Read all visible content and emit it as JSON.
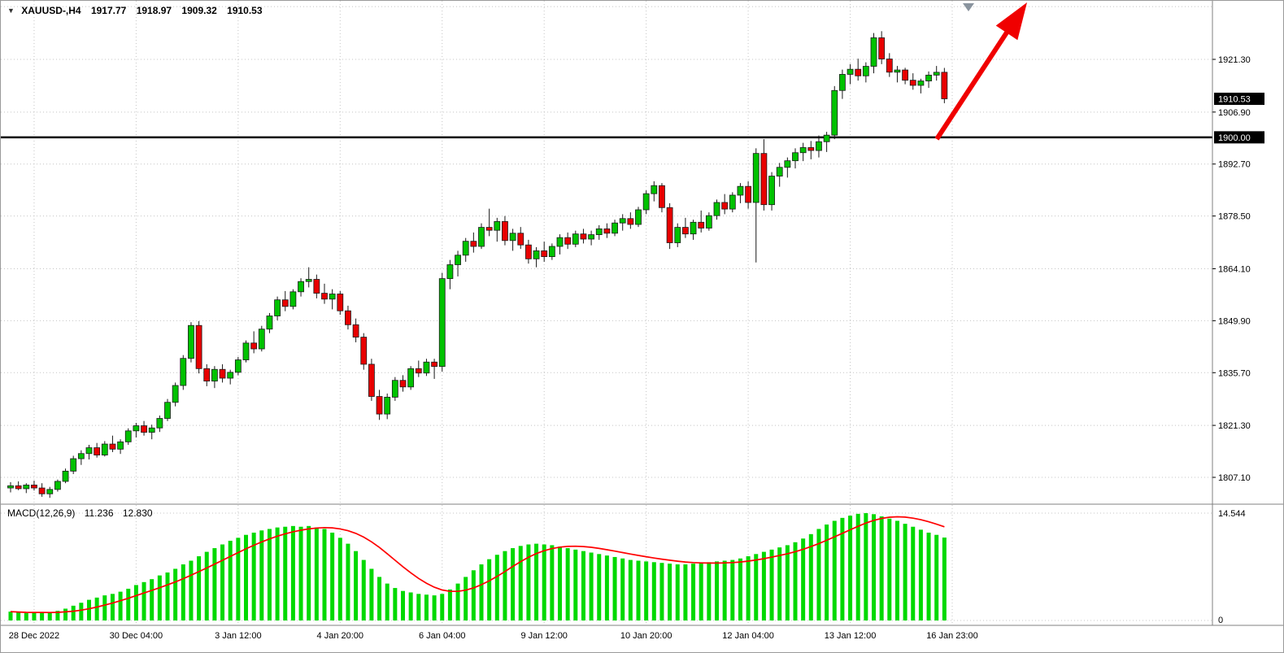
{
  "window": {
    "symbol_period": "XAUUSD-,H4",
    "ohlc": {
      "open": "1917.77",
      "high": "1918.97",
      "low": "1909.32",
      "close": "1910.53"
    }
  },
  "colors": {
    "background": "#ffffff",
    "grid": "#c4c4c4",
    "candle_up": "#00c200",
    "candle_down": "#e80000",
    "candle_outline": "#1a1a1a",
    "macd_bar": "#00d900",
    "macd_signal": "#ff0000",
    "level_line": "#000000",
    "badge_bg": "#000000",
    "badge_text": "#ffffff",
    "arrow": "#f00000",
    "separator": "#808080",
    "shift_marker": "#8a949e",
    "text": "#000000"
  },
  "price_axis": {
    "labels": [
      1921.3,
      1906.9,
      1892.7,
      1878.5,
      1864.1,
      1849.9,
      1835.7,
      1821.3,
      1807.1
    ],
    "extra_gridlines": [
      1935.7
    ],
    "badges": [
      {
        "text": "1910.53",
        "value": 1910.53,
        "name": "current-price-badge"
      },
      {
        "text": "1900.00",
        "value": 1900.0,
        "name": "level-price-badge"
      }
    ]
  },
  "time_axis": {
    "labels": [
      "28 Dec 2022",
      "30 Dec 04:00",
      "3 Jan 12:00",
      "4 Jan 20:00",
      "6 Jan 04:00",
      "9 Jan 12:00",
      "10 Jan 20:00",
      "12 Jan 04:00",
      "13 Jan 12:00",
      "16 Jan 23:00"
    ],
    "bar_indices": [
      3,
      16,
      29,
      42,
      55,
      68,
      81,
      94,
      107,
      120
    ]
  },
  "level_line": {
    "value": 1900.0
  },
  "annotations": {
    "trend_arrow": {
      "type": "arrow",
      "direction": "up-right",
      "color": "#f00000"
    }
  },
  "chart_data": {
    "type": "candlestick",
    "symbol": "XAUUSD-",
    "timeframe": "H4",
    "ohlc_format": [
      "open",
      "high",
      "low",
      "close"
    ],
    "candles": [
      [
        1804.2,
        1805.8,
        1803.0,
        1804.8
      ],
      [
        1804.8,
        1806.0,
        1803.6,
        1804.0
      ],
      [
        1804.0,
        1805.5,
        1802.8,
        1805.0
      ],
      [
        1805.0,
        1806.2,
        1803.5,
        1804.2
      ],
      [
        1804.2,
        1805.5,
        1801.8,
        1802.6
      ],
      [
        1802.6,
        1804.5,
        1801.5,
        1803.8
      ],
      [
        1803.8,
        1806.5,
        1803.2,
        1806.0
      ],
      [
        1806.0,
        1809.5,
        1805.5,
        1808.8
      ],
      [
        1808.8,
        1813.0,
        1808.0,
        1812.2
      ],
      [
        1812.2,
        1814.5,
        1810.5,
        1813.6
      ],
      [
        1813.6,
        1816.0,
        1812.0,
        1815.2
      ],
      [
        1815.2,
        1816.5,
        1812.5,
        1813.2
      ],
      [
        1813.2,
        1817.0,
        1812.8,
        1816.2
      ],
      [
        1816.2,
        1818.5,
        1814.0,
        1814.8
      ],
      [
        1814.8,
        1817.5,
        1813.5,
        1816.8
      ],
      [
        1816.8,
        1820.5,
        1816.0,
        1819.8
      ],
      [
        1819.8,
        1822.0,
        1818.0,
        1821.2
      ],
      [
        1821.2,
        1822.5,
        1818.5,
        1819.4
      ],
      [
        1819.4,
        1821.5,
        1817.5,
        1820.6
      ],
      [
        1820.6,
        1824.0,
        1819.5,
        1823.2
      ],
      [
        1823.2,
        1828.5,
        1822.5,
        1827.6
      ],
      [
        1827.6,
        1833.0,
        1826.5,
        1832.2
      ],
      [
        1832.2,
        1840.5,
        1831.0,
        1839.6
      ],
      [
        1839.6,
        1849.5,
        1838.5,
        1848.6
      ],
      [
        1848.6,
        1849.8,
        1835.5,
        1836.8
      ],
      [
        1836.8,
        1838.0,
        1832.0,
        1833.4
      ],
      [
        1833.4,
        1837.5,
        1831.5,
        1836.6
      ],
      [
        1836.6,
        1838.0,
        1833.0,
        1834.2
      ],
      [
        1834.2,
        1836.5,
        1832.5,
        1835.8
      ],
      [
        1835.8,
        1840.0,
        1835.0,
        1839.2
      ],
      [
        1839.2,
        1844.5,
        1838.5,
        1843.8
      ],
      [
        1843.8,
        1847.0,
        1841.0,
        1842.2
      ],
      [
        1842.2,
        1848.5,
        1841.5,
        1847.6
      ],
      [
        1847.6,
        1852.0,
        1846.5,
        1851.2
      ],
      [
        1851.2,
        1856.5,
        1850.0,
        1855.6
      ],
      [
        1855.6,
        1858.0,
        1852.5,
        1853.8
      ],
      [
        1853.8,
        1858.5,
        1853.0,
        1857.8
      ],
      [
        1857.8,
        1861.5,
        1856.5,
        1860.6
      ],
      [
        1860.6,
        1864.5,
        1859.0,
        1861.2
      ],
      [
        1861.2,
        1862.5,
        1856.0,
        1857.4
      ],
      [
        1857.4,
        1860.0,
        1854.5,
        1855.8
      ],
      [
        1855.8,
        1858.5,
        1853.0,
        1857.2
      ],
      [
        1857.2,
        1858.0,
        1851.5,
        1852.6
      ],
      [
        1852.6,
        1854.0,
        1847.5,
        1848.8
      ],
      [
        1848.8,
        1850.5,
        1844.0,
        1845.4
      ],
      [
        1845.4,
        1846.5,
        1836.5,
        1838.0
      ],
      [
        1838.0,
        1839.5,
        1828.0,
        1829.2
      ],
      [
        1829.2,
        1831.0,
        1822.8,
        1824.4
      ],
      [
        1824.4,
        1830.0,
        1823.0,
        1829.0
      ],
      [
        1829.0,
        1834.5,
        1828.0,
        1833.6
      ],
      [
        1833.6,
        1835.0,
        1830.5,
        1831.8
      ],
      [
        1831.8,
        1837.5,
        1831.0,
        1836.8
      ],
      [
        1836.8,
        1839.0,
        1834.5,
        1835.6
      ],
      [
        1835.6,
        1839.5,
        1834.8,
        1838.6
      ],
      [
        1838.6,
        1839.5,
        1834.0,
        1837.4
      ],
      [
        1837.4,
        1863.0,
        1836.0,
        1861.4
      ],
      [
        1861.4,
        1866.5,
        1858.5,
        1865.2
      ],
      [
        1865.2,
        1869.0,
        1862.0,
        1867.8
      ],
      [
        1867.8,
        1872.5,
        1866.0,
        1871.6
      ],
      [
        1871.6,
        1874.0,
        1868.5,
        1870.2
      ],
      [
        1870.2,
        1876.5,
        1869.5,
        1875.4
      ],
      [
        1875.4,
        1880.5,
        1873.0,
        1874.6
      ],
      [
        1874.6,
        1878.0,
        1871.5,
        1877.0
      ],
      [
        1877.0,
        1878.5,
        1870.5,
        1871.8
      ],
      [
        1871.8,
        1875.0,
        1869.0,
        1873.8
      ],
      [
        1873.8,
        1875.5,
        1869.5,
        1870.6
      ],
      [
        1870.6,
        1872.0,
        1865.5,
        1866.8
      ],
      [
        1866.8,
        1870.0,
        1864.5,
        1869.0
      ],
      [
        1869.0,
        1871.5,
        1866.0,
        1867.4
      ],
      [
        1867.4,
        1871.0,
        1866.5,
        1870.2
      ],
      [
        1870.2,
        1873.5,
        1868.0,
        1872.6
      ],
      [
        1872.6,
        1874.0,
        1869.5,
        1870.8
      ],
      [
        1870.8,
        1874.5,
        1870.0,
        1873.6
      ],
      [
        1873.6,
        1875.0,
        1871.0,
        1872.2
      ],
      [
        1872.2,
        1874.5,
        1870.5,
        1873.4
      ],
      [
        1873.4,
        1876.0,
        1872.0,
        1875.0
      ],
      [
        1875.0,
        1876.5,
        1872.5,
        1873.8
      ],
      [
        1873.8,
        1877.5,
        1873.0,
        1876.6
      ],
      [
        1876.6,
        1879.0,
        1874.5,
        1877.8
      ],
      [
        1877.8,
        1879.5,
        1875.0,
        1876.2
      ],
      [
        1876.2,
        1881.0,
        1875.5,
        1880.2
      ],
      [
        1880.2,
        1885.5,
        1879.0,
        1884.6
      ],
      [
        1884.6,
        1888.0,
        1882.5,
        1886.8
      ],
      [
        1886.8,
        1887.5,
        1879.5,
        1880.8
      ],
      [
        1880.8,
        1882.0,
        1869.5,
        1871.2
      ],
      [
        1871.2,
        1876.5,
        1870.0,
        1875.4
      ],
      [
        1875.4,
        1878.0,
        1872.5,
        1873.6
      ],
      [
        1873.6,
        1877.5,
        1872.0,
        1876.8
      ],
      [
        1876.8,
        1880.0,
        1874.0,
        1875.2
      ],
      [
        1875.2,
        1879.5,
        1874.5,
        1878.6
      ],
      [
        1878.6,
        1883.0,
        1877.5,
        1882.2
      ],
      [
        1882.2,
        1884.5,
        1879.0,
        1880.4
      ],
      [
        1880.4,
        1885.0,
        1879.5,
        1884.2
      ],
      [
        1884.2,
        1887.5,
        1882.0,
        1886.6
      ],
      [
        1886.6,
        1888.0,
        1880.5,
        1882.2
      ],
      [
        1882.2,
        1897.0,
        1865.8,
        1895.6
      ],
      [
        1895.6,
        1899.5,
        1880.0,
        1881.6
      ],
      [
        1881.6,
        1890.5,
        1880.0,
        1889.4
      ],
      [
        1889.4,
        1893.0,
        1886.5,
        1891.8
      ],
      [
        1891.8,
        1894.5,
        1889.0,
        1893.6
      ],
      [
        1893.6,
        1897.0,
        1891.5,
        1895.8
      ],
      [
        1895.8,
        1898.5,
        1893.5,
        1897.2
      ],
      [
        1897.2,
        1899.0,
        1894.0,
        1896.4
      ],
      [
        1896.4,
        1900.5,
        1894.5,
        1898.8
      ],
      [
        1898.8,
        1901.5,
        1896.0,
        1900.6
      ],
      [
        1900.6,
        1914.0,
        1899.5,
        1912.8
      ],
      [
        1912.8,
        1918.5,
        1910.5,
        1917.2
      ],
      [
        1917.2,
        1920.0,
        1914.5,
        1918.6
      ],
      [
        1918.6,
        1921.5,
        1915.5,
        1916.8
      ],
      [
        1916.8,
        1920.5,
        1915.0,
        1919.4
      ],
      [
        1919.4,
        1928.5,
        1917.5,
        1927.2
      ],
      [
        1927.2,
        1929.0,
        1920.0,
        1921.4
      ],
      [
        1921.4,
        1923.0,
        1916.5,
        1917.8
      ],
      [
        1917.8,
        1919.5,
        1915.0,
        1918.4
      ],
      [
        1918.4,
        1919.0,
        1914.5,
        1915.6
      ],
      [
        1915.6,
        1917.5,
        1913.0,
        1914.2
      ],
      [
        1914.2,
        1916.0,
        1912.0,
        1915.4
      ],
      [
        1915.4,
        1918.0,
        1913.5,
        1917.0
      ],
      [
        1917.0,
        1919.5,
        1915.5,
        1917.77
      ],
      [
        1917.77,
        1918.97,
        1909.32,
        1910.53
      ]
    ],
    "macd": {
      "label": "MACD(12,26,9)",
      "value_main": "11.236",
      "value_signal": "12.830",
      "axis_max": 14.544,
      "axis_min": 0,
      "signal_period": 9,
      "values": [
        1.2,
        1.1,
        1.0,
        1.05,
        1.1,
        1.0,
        1.3,
        1.6,
        2.0,
        2.4,
        2.8,
        3.1,
        3.4,
        3.6,
        3.9,
        4.3,
        4.8,
        5.2,
        5.6,
        6.1,
        6.5,
        7.0,
        7.6,
        8.1,
        8.7,
        9.3,
        9.8,
        10.3,
        10.8,
        11.2,
        11.6,
        11.9,
        12.2,
        12.4,
        12.6,
        12.7,
        12.8,
        12.7,
        12.8,
        12.6,
        12.4,
        11.9,
        11.2,
        10.4,
        9.4,
        8.2,
        7.0,
        5.9,
        5.0,
        4.4,
        4.0,
        3.8,
        3.6,
        3.5,
        3.4,
        3.6,
        4.2,
        5.0,
        5.9,
        6.8,
        7.6,
        8.3,
        8.9,
        9.4,
        9.8,
        10.1,
        10.3,
        10.4,
        10.3,
        10.2,
        10.0,
        9.8,
        9.6,
        9.4,
        9.2,
        9.0,
        8.8,
        8.6,
        8.4,
        8.2,
        8.1,
        8.0,
        7.9,
        7.8,
        7.7,
        7.6,
        7.6,
        7.7,
        7.8,
        7.9,
        8.0,
        8.1,
        8.2,
        8.4,
        8.7,
        9.0,
        9.3,
        9.6,
        9.9,
        10.2,
        10.6,
        11.1,
        11.7,
        12.4,
        13.0,
        13.5,
        13.9,
        14.2,
        14.45,
        14.544,
        14.4,
        14.1,
        13.8,
        13.5,
        13.1,
        12.7,
        12.3,
        11.9,
        11.6,
        11.236
      ]
    }
  }
}
